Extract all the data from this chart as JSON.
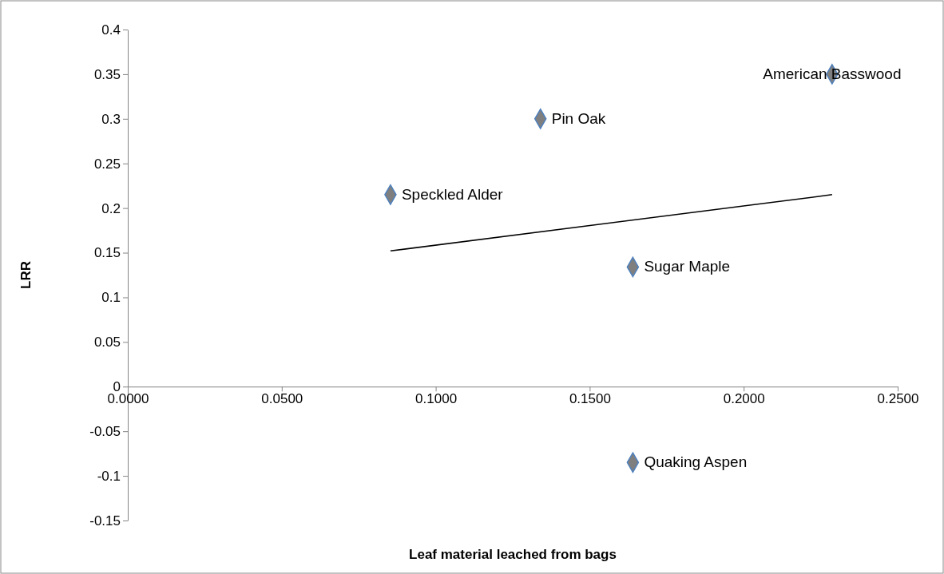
{
  "chart_data": {
    "type": "scatter",
    "xlabel": "Leaf material leached from bags",
    "ylabel": "LRR",
    "xlim": [
      0,
      0.25
    ],
    "xticks": [
      {
        "value": 0,
        "label": "0.0000"
      },
      {
        "value": 0.05,
        "label": "0.0500"
      },
      {
        "value": 0.1,
        "label": "0.1000"
      },
      {
        "value": 0.15,
        "label": "0.1500"
      },
      {
        "value": 0.2,
        "label": "0.2000"
      },
      {
        "value": 0.25,
        "label": "0.2500"
      }
    ],
    "ylim": [
      -0.15,
      0.4
    ],
    "yticks": [
      -0.15,
      -0.1,
      -0.05,
      0,
      0.05,
      0.1,
      0.15,
      0.2,
      0.25,
      0.3,
      0.35,
      0.4
    ],
    "grid": false,
    "series": [
      {
        "color": "#7f7f7f",
        "marker": "diamond",
        "x": [
          0.0853,
          0.134,
          0.164,
          0.164,
          0.2287
        ],
        "values": [
          0.215,
          0.3,
          0.134,
          -0.085,
          0.35
        ]
      },
      {
        "type": "line",
        "color": "#000000",
        "marker": "none",
        "line_style": "solid",
        "x": [
          0.0853,
          0.2287
        ],
        "values": [
          0.152,
          0.215
        ]
      }
    ],
    "annotations": [
      {
        "text": "Speckled Alder",
        "x": 0.0853,
        "y": 0.215
      },
      {
        "text": "Pin Oak",
        "x": 0.134,
        "y": 0.3
      },
      {
        "text": "Sugar Maple",
        "x": 0.164,
        "y": 0.134
      },
      {
        "text": "Quaking Aspen",
        "x": 0.164,
        "y": -0.085
      },
      {
        "text": "American Basswood",
        "x": 0.2287,
        "y": 0.35
      }
    ]
  }
}
